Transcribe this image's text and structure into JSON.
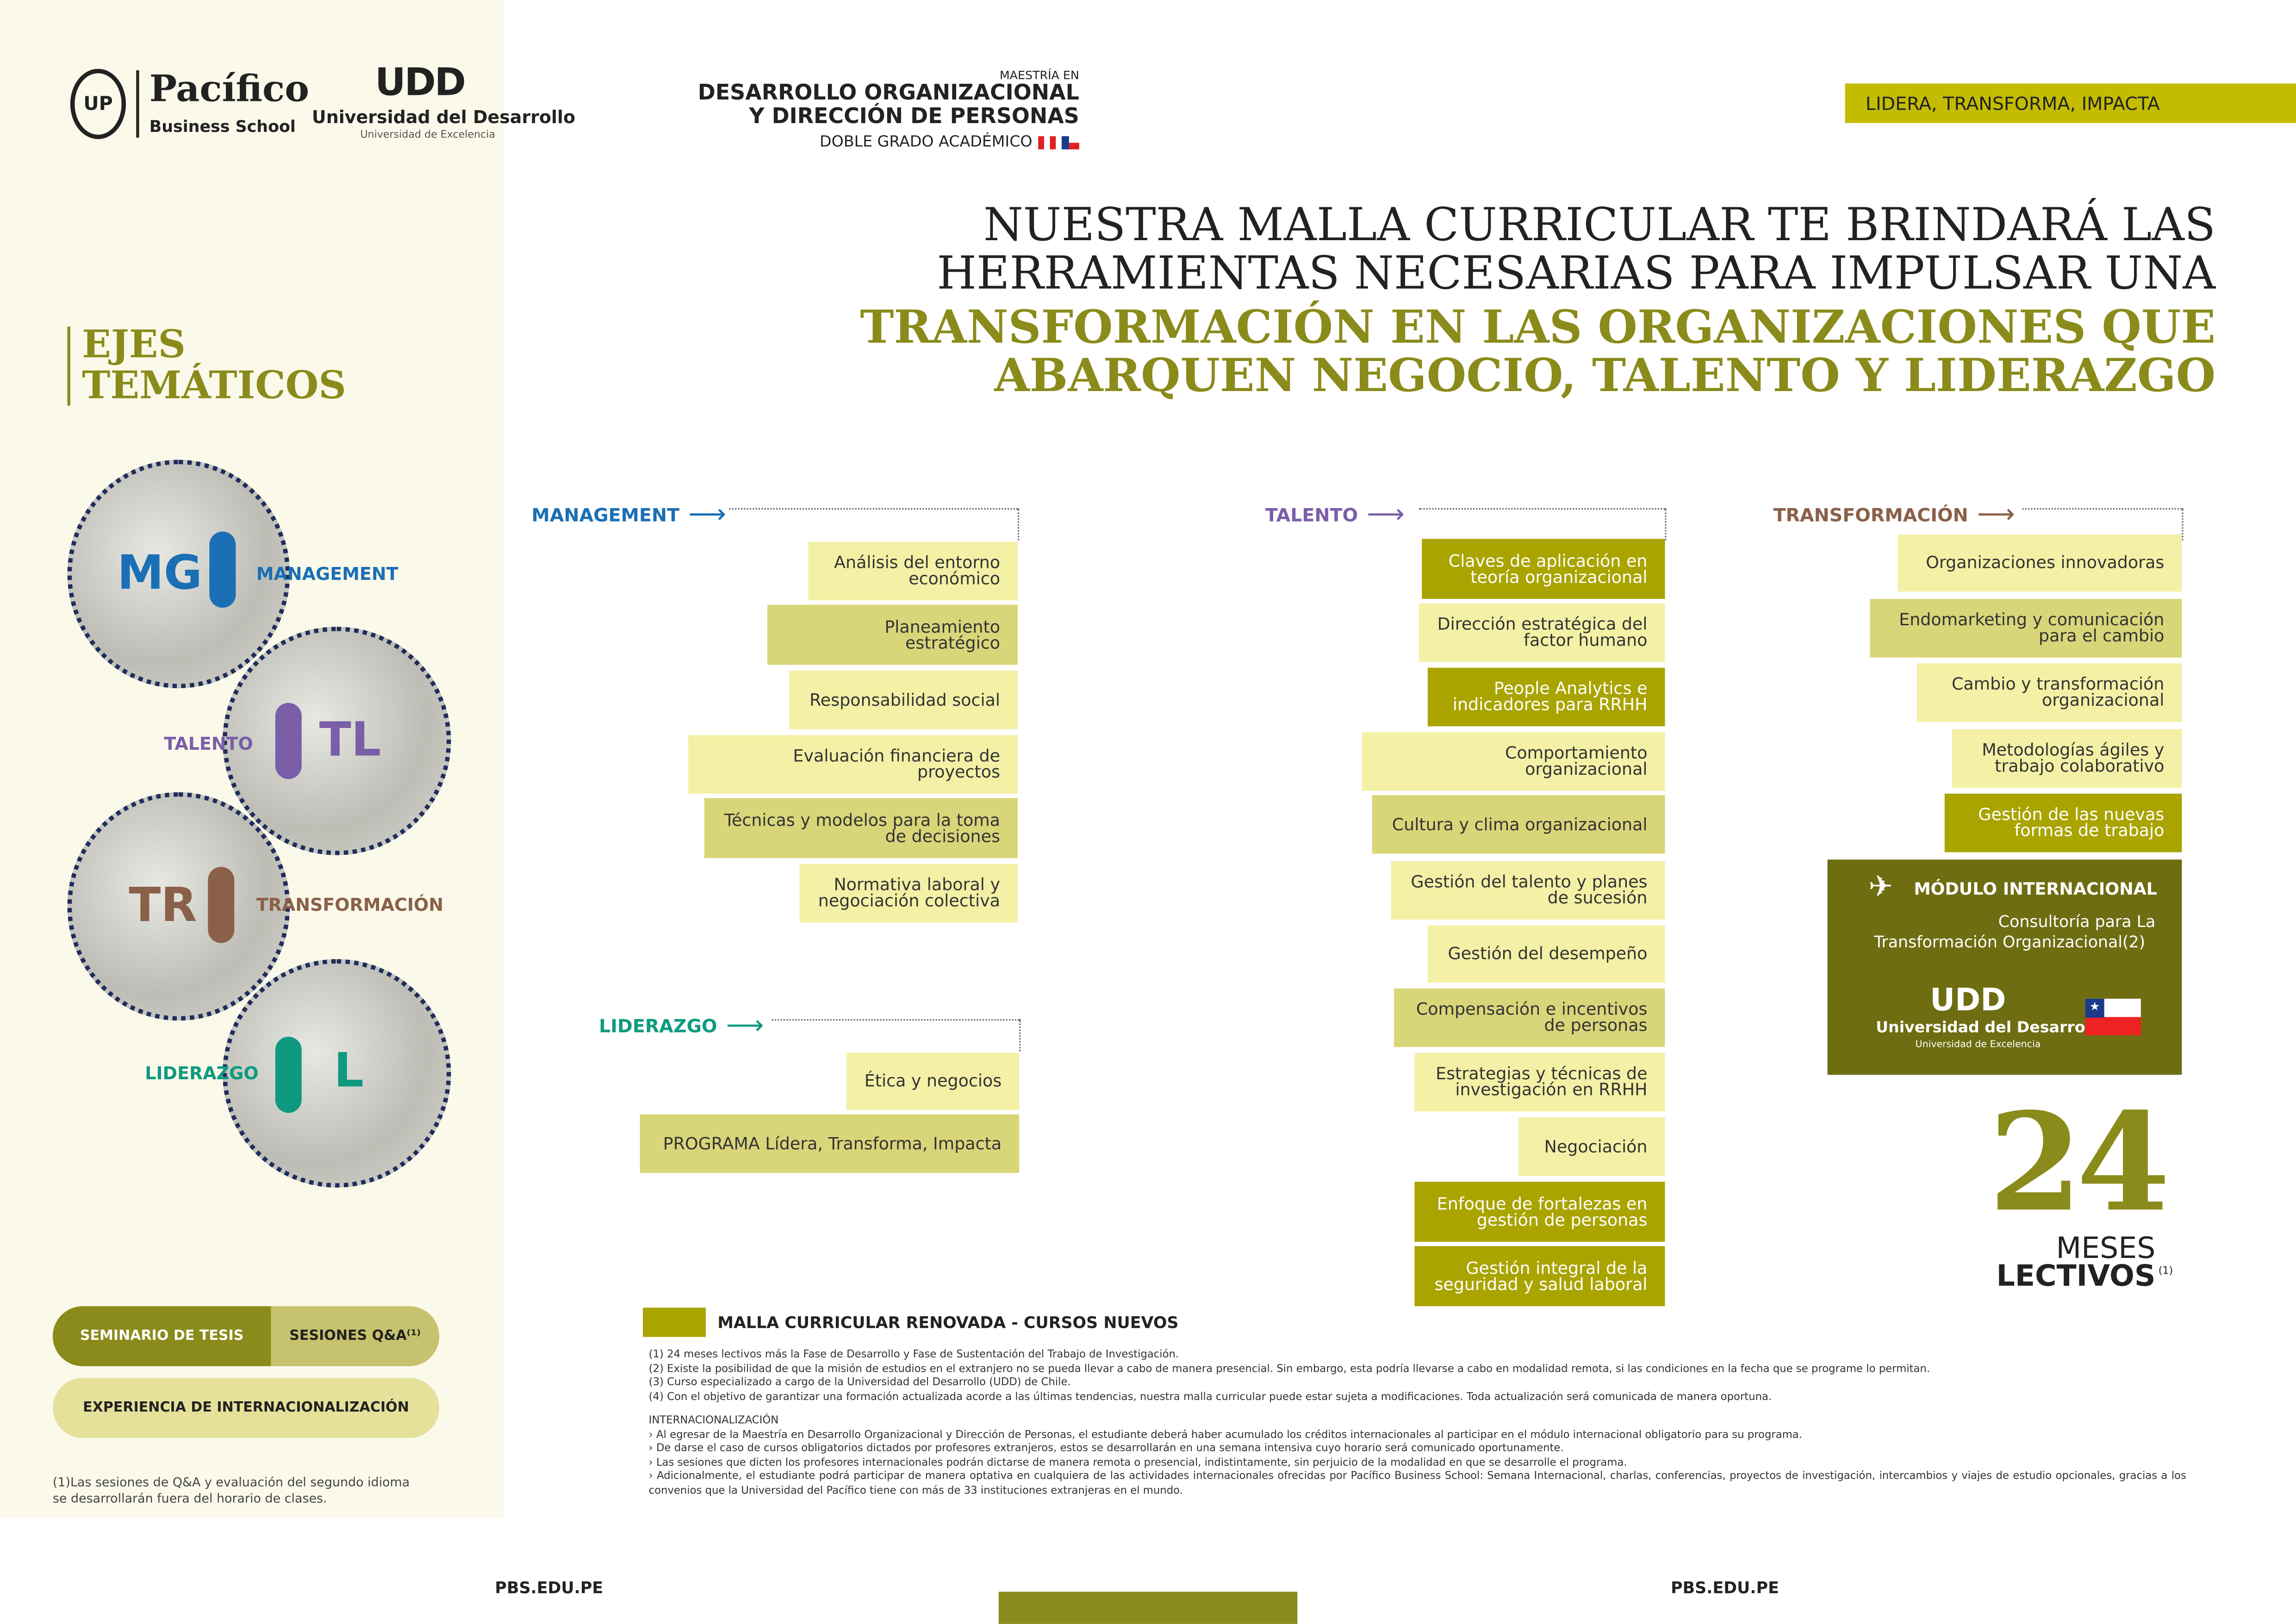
{
  "colors": {
    "olive": "#8a8b1a",
    "management": "#1a6fb5",
    "talento": "#7a5ea8",
    "transformacion": "#8a6048",
    "liderazgo": "#0f9a80",
    "banner": "#c3bc00",
    "module": "#6f6d12"
  },
  "logos": {
    "pacifico": "Pacífico",
    "pacifico_sub": "Business School",
    "udd_mark": "UDD",
    "udd_name": "Universidad del Desarrollo",
    "udd_tag": "Universidad de Excelencia"
  },
  "program": {
    "pre": "MAESTRÍA EN",
    "line1": "DESARROLLO ORGANIZACIONAL",
    "line2": "Y DIRECCIÓN DE PERSONAS",
    "grado": "DOBLE GRADO ACADÉMICO"
  },
  "banner": "LIDERA, TRANSFORMA, IMPACTA",
  "headline": {
    "l1": "NUESTRA MALLA CURRICULAR TE BRINDARÁ LAS",
    "l2": "HERRAMIENTAS NECESARIAS PARA IMPULSAR UNA",
    "l3": "TRANSFORMACIÓN EN LAS ORGANIZACIONES QUE",
    "l4": "ABARQUEN NEGOCIO, TALENTO Y LIDERAZGO"
  },
  "ejes": {
    "title1": "EJES",
    "title2": "TEMÁTICOS",
    "items": [
      {
        "abbr": "MG",
        "label": "MANAGEMENT"
      },
      {
        "abbr": "TL",
        "label": "TALENTO"
      },
      {
        "abbr": "TR",
        "label": "TRANSFORMACIÓN"
      },
      {
        "abbr": "L",
        "label": "LIDERAZGO"
      }
    ]
  },
  "pills": {
    "seminario": "SEMINARIO DE TESIS",
    "sesiones": "SESIONES Q&A⁽¹⁾",
    "experiencia": "EXPERIENCIA DE INTERNACIONALIZACIÓN"
  },
  "left_note": [
    "(1)Las sesiones de Q&A y evaluación del segundo idioma",
    "se desarrollarán fuera del horario de clases."
  ],
  "columns": {
    "management": {
      "title": "MANAGEMENT",
      "courses": [
        {
          "label": "Análisis del entorno económico",
          "shade": "light"
        },
        {
          "label": "Planeamiento estratégico",
          "shade": "medium"
        },
        {
          "label": "Responsabilidad social",
          "shade": "light"
        },
        {
          "label": "Evaluación financiera de proyectos",
          "shade": "light"
        },
        {
          "label": "Técnicas y modelos para la toma de decisiones",
          "shade": "medium"
        },
        {
          "label": "Normativa laboral y negociación colectiva",
          "shade": "light"
        }
      ]
    },
    "liderazgo": {
      "title": "LIDERAZGO",
      "courses": [
        {
          "label": "Ética y negocios",
          "shade": "light"
        },
        {
          "label": "PROGRAMA Lídera, Transforma, Impacta",
          "shade": "medium"
        }
      ]
    },
    "talento": {
      "title": "TALENTO",
      "courses": [
        {
          "label": "Claves de aplicación en teoría organizacional",
          "shade": "dark"
        },
        {
          "label": "Dirección estratégica del factor humano",
          "shade": "light"
        },
        {
          "label": "People Analytics e indicadores para RRHH",
          "shade": "dark"
        },
        {
          "label": "Comportamiento organizacional",
          "shade": "light"
        },
        {
          "label": "Cultura y clima organizacional",
          "shade": "medium"
        },
        {
          "label": "Gestión del talento y planes de sucesión",
          "shade": "light"
        },
        {
          "label": "Gestión del desempeño",
          "shade": "light"
        },
        {
          "label": "Compensación e incentivos de personas",
          "shade": "medium"
        },
        {
          "label": "Estrategias y técnicas de investigación en RRHH",
          "shade": "light"
        },
        {
          "label": "Negociación",
          "shade": "light"
        },
        {
          "label": "Enfoque de fortalezas en gestión de personas",
          "shade": "dark"
        },
        {
          "label": "Gestión integral de la seguridad y salud laboral",
          "shade": "dark"
        }
      ]
    },
    "transformacion": {
      "title": "TRANSFORMACIÓN",
      "courses": [
        {
          "label": "Organizaciones innovadoras",
          "shade": "light"
        },
        {
          "label": "Endomarketing y comunicación para el cambio",
          "shade": "medium"
        },
        {
          "label": "Cambio y transformación organizacional",
          "shade": "light"
        },
        {
          "label": "Metodologías ágiles y trabajo colaborativo",
          "shade": "light"
        },
        {
          "label": "Gestión de las nuevas formas de trabajo",
          "shade": "dark"
        }
      ]
    }
  },
  "modulo": {
    "title": "MÓDULO INTERNACIONAL",
    "desc1": "Consultoría para La",
    "desc2": "Transformación Organizacional(2)",
    "udd_name": "Universidad del Desarrollo",
    "udd_tag": "Universidad de Excelencia"
  },
  "duracion": {
    "num": "24",
    "meses": "MESES",
    "lectivos": "LECTIVOS",
    "sup": "(1)"
  },
  "legend": "MALLA CURRICULAR RENOVADA - CURSOS NUEVOS",
  "footnotes": [
    "(1) 24 meses lectivos más la Fase de Desarrollo y Fase de Sustentación del Trabajo de Investigación.",
    "(2) Existe la posibilidad de que la misión de estudios en el extranjero no se pueda llevar a cabo de manera presencial. Sin embargo, esta podría llevarse a cabo en modalidad remota, si las condiciones en la fecha que se programe lo permitan.",
    "(3) Curso especializado a cargo de la Universidad del Desarrollo (UDD) de Chile.",
    "(4) Con el objetivo de garantizar una formación actualizada acorde a las últimas tendencias, nuestra malla curricular puede estar sujeta a modificaciones. Toda actualización será comunicada de manera oportuna."
  ],
  "intl": {
    "title": "INTERNACIONALIZACIÓN",
    "items": [
      "› Al egresar de la Maestría en Desarrollo Organizacional y Dirección de Personas, el estudiante deberá haber acumulado los créditos internacionales al participar en el módulo internacional obligatorio para su programa.",
      "› De darse el caso de cursos obligatorios dictados por profesores extranjeros, estos se desarrollarán en una semana intensiva cuyo horario será comunicado oportunamente.",
      "› Las sesiones que dicten los profesores internacionales podrán dictarse de manera remota o presencial, indistintamente, sin perjuicio de la modalidad en que se desarrolle el programa.",
      "› Adicionalmente, el estudiante podrá participar de manera optativa en cualquiera de las actividades internacionales ofrecidas por Pacífico Business School: Semana Internacional, charlas, conferencias, proyectos de investigación, intercambios y viajes de estudio opcionales, gracias a los convenios que la Universidad del Pacífico tiene con más de 33 instituciones extranjeras en el mundo."
    ]
  },
  "footer": {
    "left": "PBS.EDU.PE",
    "right": "PBS.EDU.PE"
  }
}
